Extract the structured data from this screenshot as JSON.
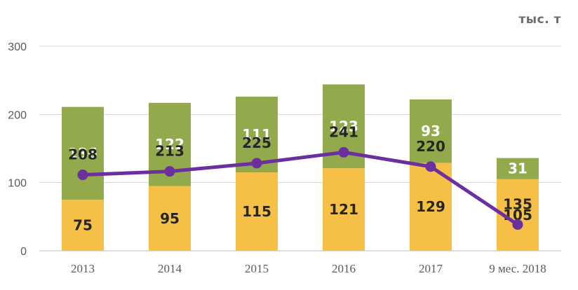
{
  "chart_data": {
    "type": "bar",
    "stacked": true,
    "unit": "тыс. т",
    "categories": [
      "2013",
      "2014",
      "2015",
      "2016",
      "2017",
      "9  мес. 2018"
    ],
    "series": [
      {
        "values": [
          75,
          95,
          115,
          121,
          129,
          105
        ],
        "color": "#f6bf45"
      },
      {
        "values": [
          136,
          122,
          111,
          123,
          93,
          31
        ],
        "color": "#92aa4c"
      }
    ],
    "line_series": {
      "values": [
        208,
        213,
        225,
        241,
        220,
        135
      ],
      "color": "#6b2fa0"
    },
    "ylim": [
      0,
      300
    ],
    "yticks": [
      0,
      100,
      200,
      300
    ],
    "grid": true
  }
}
